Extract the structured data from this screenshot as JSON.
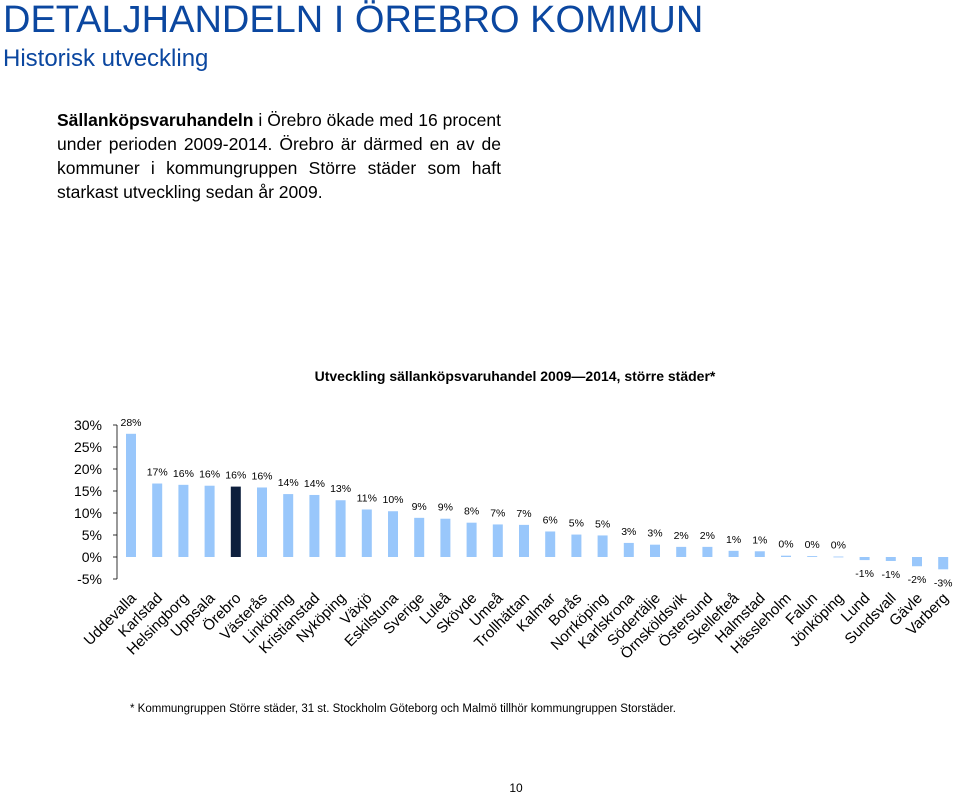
{
  "page": {
    "title": "DETALJHANDELN I ÖREBRO KOMMUN",
    "subtitle": "Historisk utveckling",
    "intro_bold": "Sällanköpsvaruhandeln",
    "intro_rest": " i Örebro ökade med 16 procent under perioden 2009-2014. Örebro är därmed en av de kommuner i kommungruppen Större städer som haft starkast utveckling sedan år 2009.",
    "footnote": "* Kommungruppen Större städer, 31 st. Stockholm Göteborg och Malmö tillhör kommungruppen Storstäder.",
    "page_number": "10"
  },
  "chart_data": {
    "type": "bar",
    "title": "Utveckling sällanköpsvaruhandel 2009—2014, större städer*",
    "xlabel": "",
    "ylabel": "",
    "ylim": [
      -5,
      30
    ],
    "yticks": [
      "30%",
      "25%",
      "20%",
      "15%",
      "10%",
      "5%",
      "0%",
      "-5%"
    ],
    "ytick_values": [
      30,
      25,
      20,
      15,
      10,
      5,
      0,
      -5
    ],
    "grid": false,
    "legend": "none",
    "bar_color": "#99c7fb",
    "highlight_color": "#0d1f3d",
    "highlight_category": "Örebro",
    "categories": [
      "Uddevalla",
      "Karlstad",
      "Helsingborg",
      "Uppsala",
      "Örebro",
      "Västerås",
      "Linköping",
      "Kristianstad",
      "Nyköping",
      "Växjö",
      "Eskilstuna",
      "Sverige",
      "Luleå",
      "Skövde",
      "Umeå",
      "Trollhättan",
      "Kalmar",
      "Borås",
      "Norrköping",
      "Karlskrona",
      "Södertälje",
      "Örnsköldsvik",
      "Östersund",
      "Skellefteå",
      "Halmstad",
      "Hässleholm",
      "Falun",
      "Jönköping",
      "Lund",
      "Sundsvall",
      "Gävle",
      "Varberg"
    ],
    "values": [
      28,
      16.7,
      16.4,
      16.2,
      16,
      15.8,
      14.3,
      14.1,
      12.9,
      10.8,
      10.4,
      8.9,
      8.7,
      7.8,
      7.4,
      7.3,
      5.8,
      5.1,
      4.9,
      3.2,
      2.8,
      2.3,
      2.3,
      1.4,
      1.3,
      0.3,
      0.2,
      0.1,
      -0.7,
      -0.9,
      -2.1,
      -2.8
    ],
    "labels": [
      "28%",
      "17%",
      "16%",
      "16%",
      "16%",
      "16%",
      "14%",
      "14%",
      "13%",
      "11%",
      "10%",
      "9%",
      "9%",
      "8%",
      "7%",
      "7%",
      "6%",
      "5%",
      "5%",
      "3%",
      "3%",
      "2%",
      "2%",
      "1%",
      "1%",
      "0%",
      "0%",
      "0%",
      "-1%",
      "-1%",
      "-2%",
      "-3%"
    ]
  }
}
